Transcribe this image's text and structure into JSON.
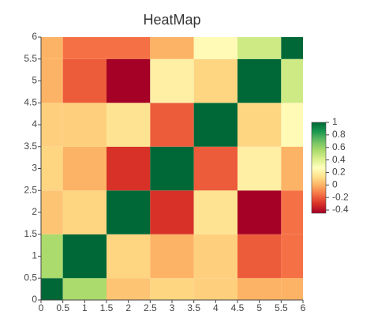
{
  "chart_data": {
    "type": "heatmap",
    "title": "HeatMap",
    "x": [
      0,
      1,
      2,
      3,
      4,
      5,
      6
    ],
    "y": [
      0,
      1,
      2,
      3,
      4,
      5,
      6
    ],
    "z": [
      [
        1,
        0.55,
        0.05,
        0.1,
        0.08,
        0,
        0
      ],
      [
        0.55,
        1,
        0.1,
        0,
        0.08,
        -0.2,
        -0.15
      ],
      [
        0.05,
        0.1,
        1,
        -0.3,
        0.15,
        -0.45,
        -0.15
      ],
      [
        0.1,
        0,
        -0.3,
        1,
        -0.2,
        0.2,
        0
      ],
      [
        0.08,
        0.08,
        0.15,
        -0.2,
        1,
        0.1,
        0.25
      ],
      [
        0,
        -0.2,
        -0.45,
        0.2,
        0.1,
        1,
        0.45
      ],
      [
        0,
        -0.15,
        -0.15,
        0,
        0.25,
        0.45,
        1
      ]
    ],
    "xlim": [
      0,
      6
    ],
    "ylim": [
      0,
      6
    ],
    "xticks": [
      0,
      0.5,
      1,
      1.5,
      2,
      2.5,
      3,
      3.5,
      4,
      4.5,
      5,
      5.5,
      6
    ],
    "yticks": [
      0,
      0.5,
      1,
      1.5,
      2,
      2.5,
      3,
      3.5,
      4,
      4.5,
      5,
      5.5,
      6
    ],
    "zlim": [
      -0.45,
      1
    ],
    "colorbar_ticks": [
      -0.4,
      -0.2,
      0,
      0.2,
      0.4,
      0.6,
      0.8,
      1
    ],
    "colorscale": [
      "#a50026",
      "#d73027",
      "#f46d43",
      "#fdae61",
      "#fee08b",
      "#ffffbf",
      "#d9ef8b",
      "#a6d96a",
      "#66bd63",
      "#1a9850",
      "#006837"
    ]
  }
}
